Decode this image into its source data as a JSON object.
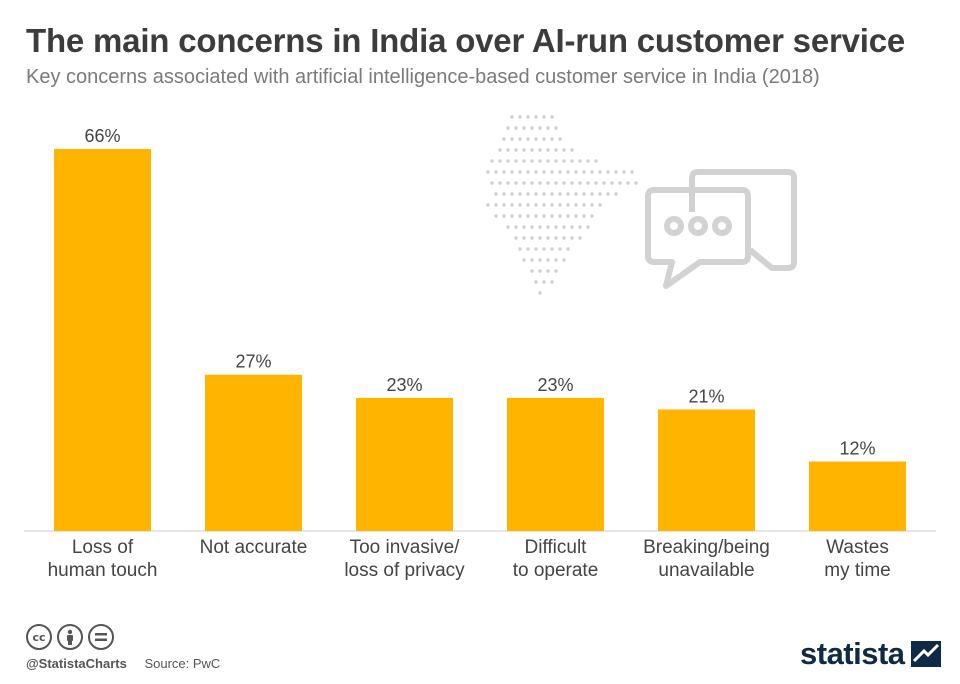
{
  "header": {
    "title": "The main concerns in India over AI-run customer service",
    "subtitle": "Key concerns associated with artificial intelligence-based customer service in India (2018)"
  },
  "chart_data": {
    "type": "bar",
    "title": "The main concerns in India over AI-run customer service",
    "subtitle": "Key concerns associated with artificial intelligence-based customer service in India (2018)",
    "categories": [
      [
        "Loss of",
        "human touch"
      ],
      [
        "Not accurate"
      ],
      [
        "Too invasive/",
        "loss of privacy"
      ],
      [
        "Difficult",
        "to operate"
      ],
      [
        "Breaking/being",
        "unavailable"
      ],
      [
        "Wastes",
        "my time"
      ]
    ],
    "values": [
      66,
      27,
      23,
      23,
      21,
      12
    ],
    "value_labels": [
      "66%",
      "27%",
      "23%",
      "23%",
      "21%",
      "12%"
    ],
    "ylim": [
      0,
      66
    ],
    "grid": false,
    "bar_color": "#ffb400"
  },
  "footer": {
    "handle": "@StatistaCharts",
    "source": "Source: PwC",
    "brand": "statista"
  },
  "colors": {
    "bar": "#ffb400",
    "title": "#3c3c3c",
    "subtitle": "#7a7a7a",
    "illustration": "#cfcfcf",
    "brand": "#0e2a47"
  },
  "icons": [
    "cc-icon",
    "by-icon",
    "nd-icon",
    "india-map-icon",
    "chat-bubbles-icon",
    "statista-logo-icon"
  ]
}
